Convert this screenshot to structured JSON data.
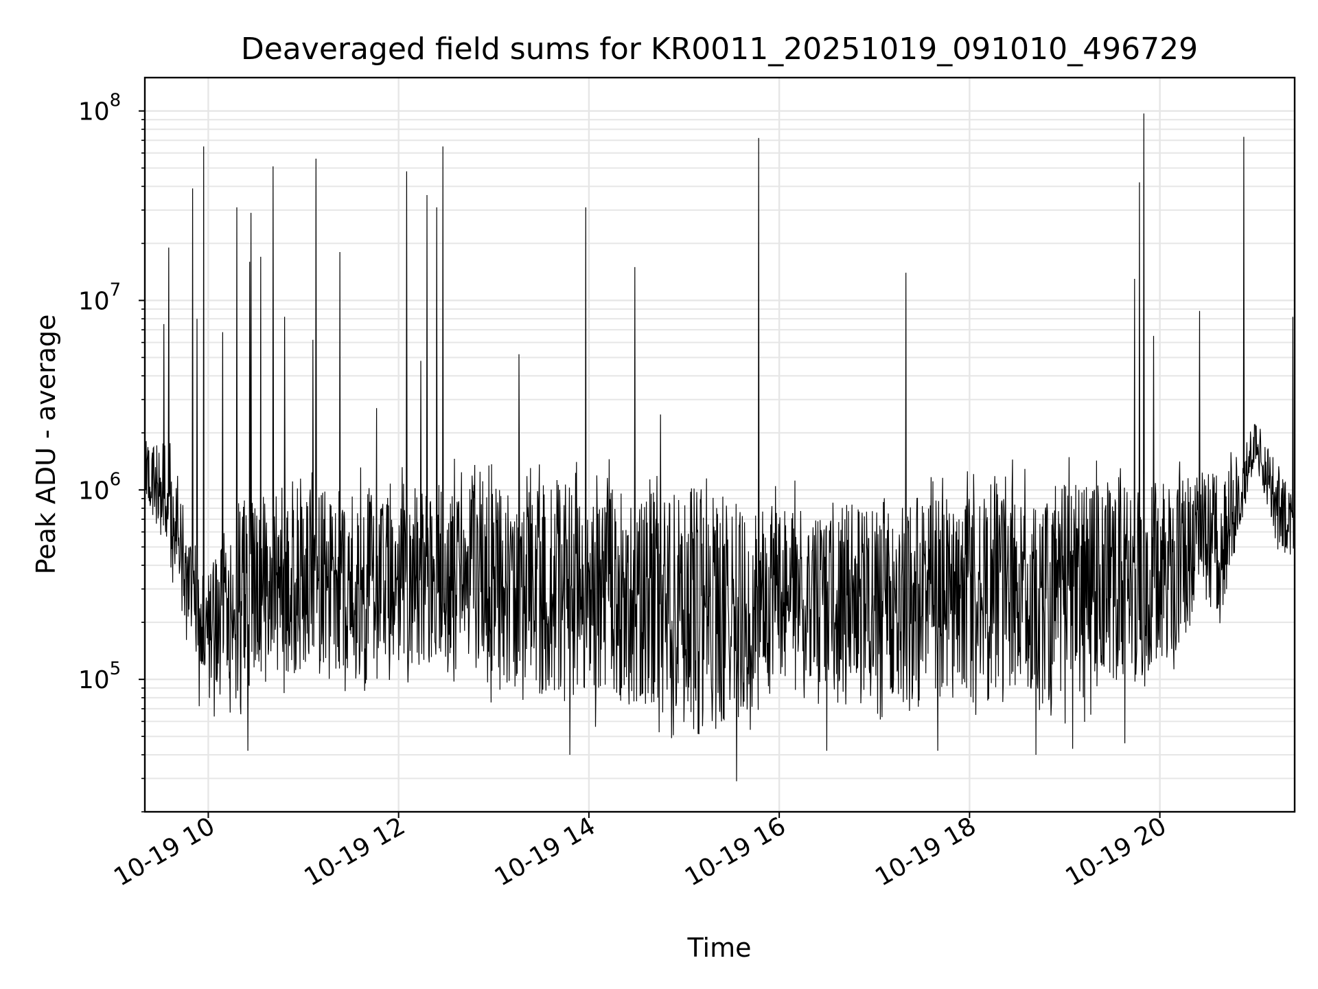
{
  "chart_data": {
    "type": "line",
    "title": "Deaveraged field sums for KR0011_20251019_091010_496729",
    "xlabel": "Time",
    "ylabel": "Peak ADU - average",
    "yscale": "log",
    "ylim": [
      20000,
      150000000
    ],
    "xlim": [
      "2025-10-19 09:20",
      "2025-10-19 21:25"
    ],
    "grid": true,
    "line_color": "#000000",
    "grid_color": "#e6e6e6",
    "x_ticks": [
      {
        "label": "10-19 10",
        "time": "2025-10-19 10:00"
      },
      {
        "label": "10-19 12",
        "time": "2025-10-19 12:00"
      },
      {
        "label": "10-19 14",
        "time": "2025-10-19 14:00"
      },
      {
        "label": "10-19 16",
        "time": "2025-10-19 16:00"
      },
      {
        "label": "10-19 18",
        "time": "2025-10-19 18:00"
      },
      {
        "label": "10-19 20",
        "time": "2025-10-19 20:00"
      }
    ],
    "y_ticks": [
      {
        "base": "10",
        "exp": "5",
        "value": 100000
      },
      {
        "base": "10",
        "exp": "6",
        "value": 1000000
      },
      {
        "base": "10",
        "exp": "7",
        "value": 10000000
      },
      {
        "base": "10",
        "exp": "8",
        "value": 100000000
      }
    ],
    "envelope": [
      {
        "time": "2025-10-19 09:20",
        "low": 700000,
        "high": 2000000
      },
      {
        "time": "2025-10-19 09:35",
        "low": 400000,
        "high": 2500000
      },
      {
        "time": "2025-10-19 09:45",
        "low": 150000,
        "high": 800000
      },
      {
        "time": "2025-10-19 09:55",
        "low": 65000,
        "high": 450000
      },
      {
        "time": "2025-10-19 10:20",
        "low": 50000,
        "high": 1200000
      },
      {
        "time": "2025-10-19 10:40",
        "low": 80000,
        "high": 1400000
      },
      {
        "time": "2025-10-19 11:30",
        "low": 80000,
        "high": 1400000
      },
      {
        "time": "2025-10-19 12:30",
        "low": 90000,
        "high": 1500000
      },
      {
        "time": "2025-10-19 13:30",
        "low": 60000,
        "high": 1600000
      },
      {
        "time": "2025-10-19 14:30",
        "low": 50000,
        "high": 1500000
      },
      {
        "time": "2025-10-19 15:30",
        "low": 40000,
        "high": 1300000
      },
      {
        "time": "2025-10-19 16:00",
        "low": 80000,
        "high": 1200000
      },
      {
        "time": "2025-10-19 17:00",
        "low": 60000,
        "high": 1100000
      },
      {
        "time": "2025-10-19 18:00",
        "low": 55000,
        "high": 1500000
      },
      {
        "time": "2025-10-19 19:00",
        "low": 50000,
        "high": 1500000
      },
      {
        "time": "2025-10-19 20:00",
        "low": 90000,
        "high": 1500000
      },
      {
        "time": "2025-10-19 20:40",
        "low": 200000,
        "high": 1600000
      },
      {
        "time": "2025-10-19 21:00",
        "low": 1300000,
        "high": 2500000
      },
      {
        "time": "2025-10-19 21:15",
        "low": 400000,
        "high": 1500000
      },
      {
        "time": "2025-10-19 21:25",
        "low": 400000,
        "high": 1000000
      }
    ],
    "spikes": [
      {
        "time": "2025-10-19 09:32",
        "value": 7500000
      },
      {
        "time": "2025-10-19 09:35",
        "value": 19000000
      },
      {
        "time": "2025-10-19 09:50",
        "value": 39000000
      },
      {
        "time": "2025-10-19 09:53",
        "value": 8000000
      },
      {
        "time": "2025-10-19 09:57",
        "value": 65000000
      },
      {
        "time": "2025-10-19 10:09",
        "value": 6800000
      },
      {
        "time": "2025-10-19 10:18",
        "value": 31000000
      },
      {
        "time": "2025-10-19 10:26",
        "value": 16000000
      },
      {
        "time": "2025-10-19 10:27",
        "value": 29000000
      },
      {
        "time": "2025-10-19 10:33",
        "value": 17000000
      },
      {
        "time": "2025-10-19 10:41",
        "value": 51000000
      },
      {
        "time": "2025-10-19 10:48",
        "value": 8200000
      },
      {
        "time": "2025-10-19 11:06",
        "value": 6200000
      },
      {
        "time": "2025-10-19 11:08",
        "value": 56000000
      },
      {
        "time": "2025-10-19 11:23",
        "value": 18000000
      },
      {
        "time": "2025-10-19 11:46",
        "value": 2700000
      },
      {
        "time": "2025-10-19 12:05",
        "value": 48000000
      },
      {
        "time": "2025-10-19 12:14",
        "value": 4800000
      },
      {
        "time": "2025-10-19 12:18",
        "value": 36000000
      },
      {
        "time": "2025-10-19 12:24",
        "value": 31000000
      },
      {
        "time": "2025-10-19 12:28",
        "value": 65000000
      },
      {
        "time": "2025-10-19 13:16",
        "value": 5200000
      },
      {
        "time": "2025-10-19 13:58",
        "value": 31000000
      },
      {
        "time": "2025-10-19 14:29",
        "value": 15000000
      },
      {
        "time": "2025-10-19 14:45",
        "value": 2500000
      },
      {
        "time": "2025-10-19 15:47",
        "value": 72000000
      },
      {
        "time": "2025-10-19 17:20",
        "value": 14000000
      },
      {
        "time": "2025-10-19 19:44",
        "value": 13000000
      },
      {
        "time": "2025-10-19 19:47",
        "value": 42000000
      },
      {
        "time": "2025-10-19 19:50",
        "value": 97000000
      },
      {
        "time": "2025-10-19 19:56",
        "value": 6500000
      },
      {
        "time": "2025-10-19 20:25",
        "value": 8800000
      },
      {
        "time": "2025-10-19 20:53",
        "value": 73000000
      },
      {
        "time": "2025-10-19 21:24",
        "value": 8200000
      }
    ],
    "dips": [
      {
        "time": "2025-10-19 10:25",
        "value": 42000
      },
      {
        "time": "2025-10-19 13:48",
        "value": 40000
      },
      {
        "time": "2025-10-19 15:33",
        "value": 29000
      },
      {
        "time": "2025-10-19 16:30",
        "value": 42000
      },
      {
        "time": "2025-10-19 17:40",
        "value": 42000
      },
      {
        "time": "2025-10-19 18:42",
        "value": 40000
      },
      {
        "time": "2025-10-19 19:05",
        "value": 43000
      },
      {
        "time": "2025-10-19 19:38",
        "value": 46000
      }
    ]
  }
}
